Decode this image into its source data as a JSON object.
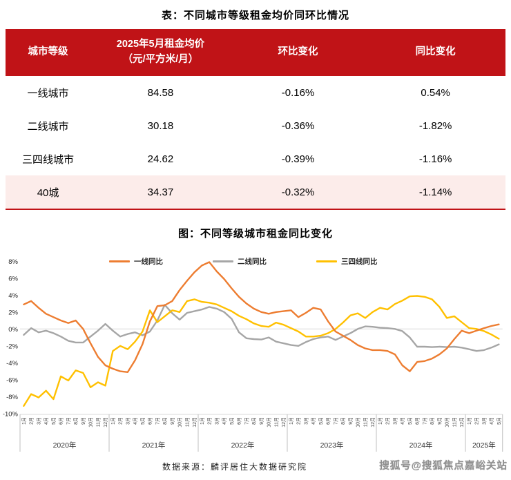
{
  "table": {
    "title": "表：不同城市等级租金均价同环比情况",
    "columns": [
      {
        "label": "城市等级",
        "sublabel": ""
      },
      {
        "label": "2025年5月租金均价",
        "sublabel": "（元/平方米/月）"
      },
      {
        "label": "环比变化",
        "sublabel": ""
      },
      {
        "label": "同比变化",
        "sublabel": ""
      }
    ],
    "rows": [
      {
        "tier": "一线城市",
        "price": "84.58",
        "mom": "-0.16%",
        "yoy": "0.54%"
      },
      {
        "tier": "二线城市",
        "price": "30.18",
        "mom": "-0.36%",
        "yoy": "-1.82%"
      },
      {
        "tier": "三四线城市",
        "price": "24.62",
        "mom": "-0.39%",
        "yoy": "-1.16%"
      },
      {
        "tier": "40城",
        "price": "34.37",
        "mom": "-0.32%",
        "yoy": "-1.14%"
      }
    ],
    "header_bg": "#C01317",
    "highlight_row_bg": "#FCECEA"
  },
  "chart": {
    "title": "图：不同等级城市租金同比变化"
  },
  "chart_data": {
    "type": "line",
    "title": "图：不同等级城市租金同比变化",
    "ylim": [
      -10,
      8
    ],
    "y_tick_labels": [
      "8%",
      "6%",
      "4%",
      "2%",
      "0%",
      "-2%",
      "-4%",
      "-6%",
      "-8%",
      "-10%"
    ],
    "grid": "zero-line-only",
    "legend_position": "top-inside",
    "year_groups": [
      {
        "label": "2020年",
        "months": 12
      },
      {
        "label": "2021年",
        "months": 12
      },
      {
        "label": "2022年",
        "months": 12
      },
      {
        "label": "2023年",
        "months": 12
      },
      {
        "label": "2024年",
        "months": 12
      },
      {
        "label": "2025年",
        "months": 5
      }
    ],
    "x_labels": [
      "1月",
      "2月",
      "3月",
      "4月",
      "5月",
      "6月",
      "7月",
      "8月",
      "9月",
      "10月",
      "11月",
      "12月",
      "1月",
      "2月",
      "3月",
      "4月",
      "5月",
      "6月",
      "7月",
      "8月",
      "9月",
      "10月",
      "11月",
      "12月",
      "1月",
      "2月",
      "3月",
      "4月",
      "5月",
      "6月",
      "7月",
      "8月",
      "9月",
      "10月",
      "11月",
      "12月",
      "1月",
      "2月",
      "3月",
      "4月",
      "5月",
      "6月",
      "7月",
      "8月",
      "9月",
      "10月",
      "11月",
      "12月",
      "1月",
      "2月",
      "3月",
      "4月",
      "5月",
      "6月",
      "7月",
      "8月",
      "9月",
      "10月",
      "11月",
      "12月",
      "1月",
      "2月",
      "3月",
      "4月",
      "5月"
    ],
    "series": [
      {
        "name": "一线同比",
        "color": "#ED7D31",
        "values": [
          2.9,
          3.3,
          2.5,
          1.8,
          1.4,
          1.0,
          0.7,
          1.0,
          0.0,
          -1.7,
          -3.3,
          -4.3,
          -4.7,
          -5.0,
          -5.1,
          -3.7,
          -1.8,
          0.9,
          2.7,
          2.8,
          3.3,
          4.6,
          5.7,
          6.7,
          7.5,
          7.9,
          6.8,
          5.9,
          4.8,
          3.8,
          3.0,
          2.4,
          2.0,
          1.8,
          2.0,
          2.1,
          2.2,
          1.4,
          1.9,
          2.5,
          2.3,
          0.9,
          -0.3,
          -0.8,
          -1.3,
          -1.9,
          -2.3,
          -2.5,
          -2.5,
          -2.6,
          -3.0,
          -4.3,
          -5.0,
          -3.9,
          -3.8,
          -3.5,
          -3.0,
          -2.3,
          -1.2,
          -0.2,
          -0.5,
          -0.2,
          0.1,
          0.35,
          0.54
        ]
      },
      {
        "name": "二线同比",
        "color": "#A6A6A6",
        "values": [
          -0.7,
          0.1,
          -0.4,
          -0.2,
          -0.5,
          -0.9,
          -1.4,
          -1.6,
          -1.6,
          -0.9,
          -0.2,
          0.6,
          -0.2,
          -0.9,
          -0.6,
          -0.4,
          -0.75,
          -0.3,
          1.0,
          2.85,
          1.85,
          1.1,
          1.9,
          2.1,
          2.3,
          2.6,
          2.4,
          2.0,
          1.2,
          -0.4,
          -1.1,
          -1.2,
          -1.25,
          -1.0,
          -1.5,
          -1.7,
          -1.9,
          -2.0,
          -1.55,
          -1.2,
          -1.0,
          -0.9,
          -1.3,
          -0.9,
          -0.5,
          0.0,
          0.3,
          0.25,
          0.15,
          0.1,
          0.0,
          -0.25,
          -1.0,
          -2.1,
          -2.1,
          -2.15,
          -2.1,
          -2.15,
          -2.1,
          -2.2,
          -2.4,
          -2.6,
          -2.5,
          -2.2,
          -1.82
        ]
      },
      {
        "name": "三四线同比",
        "color": "#FFC000",
        "values": [
          -9.1,
          -7.7,
          -8.1,
          -7.3,
          -8.3,
          -5.6,
          -6.1,
          -4.9,
          -5.2,
          -6.9,
          -6.3,
          -6.7,
          -2.6,
          -2.0,
          -2.4,
          -1.5,
          -0.3,
          2.2,
          0.8,
          1.5,
          2.2,
          2.0,
          3.3,
          3.5,
          3.2,
          3.1,
          2.9,
          2.5,
          2.1,
          1.55,
          1.15,
          0.65,
          0.35,
          0.25,
          0.75,
          0.5,
          0.1,
          -0.3,
          -0.9,
          -0.9,
          -0.8,
          -0.5,
          0.0,
          0.75,
          1.6,
          1.85,
          1.3,
          2.0,
          2.5,
          2.3,
          2.95,
          3.35,
          3.85,
          3.9,
          3.8,
          3.5,
          2.6,
          1.3,
          1.5,
          0.8,
          0.1,
          0.0,
          -0.25,
          -0.65,
          -1.16
        ]
      }
    ]
  },
  "footer": {
    "source": "数据来源：麟评居住大数据研究院",
    "watermark": "搜狐号@搜狐焦点嘉峪关站"
  }
}
